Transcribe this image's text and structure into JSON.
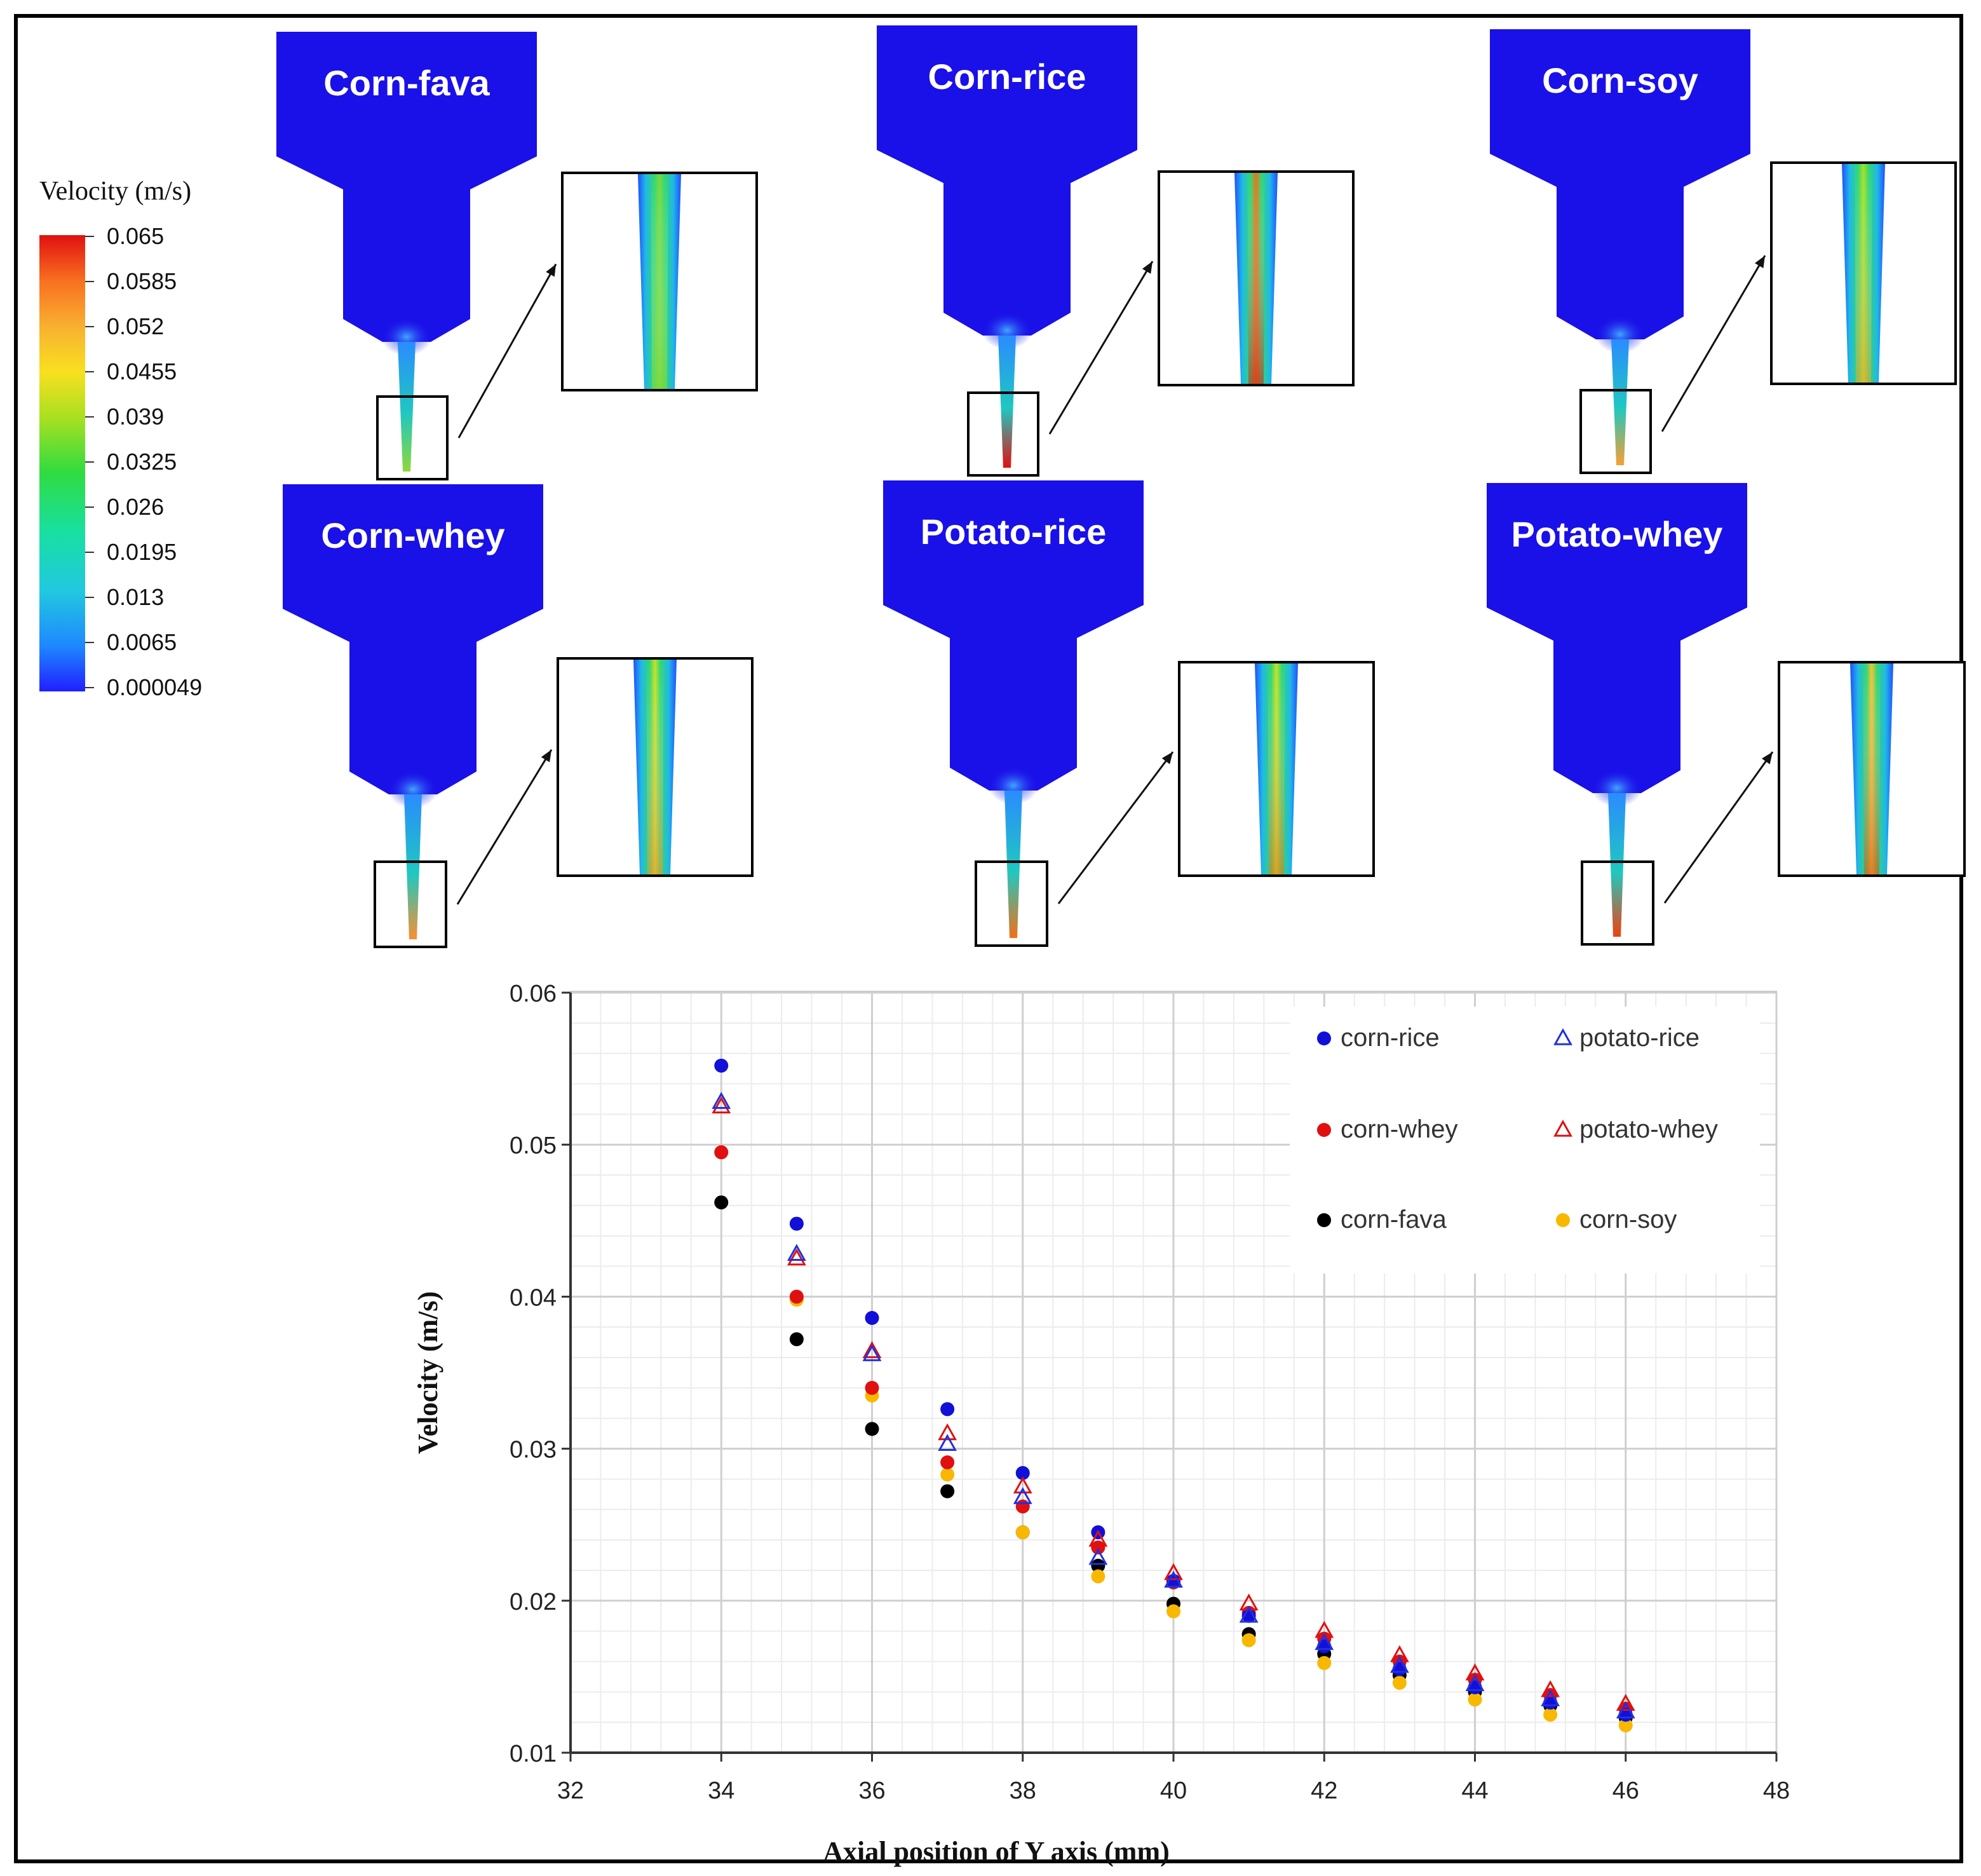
{
  "colorbar": {
    "title": "Velocity (m/s)",
    "labels": [
      "0.065",
      "0.0585",
      "0.052",
      "0.0455",
      "0.039",
      "0.0325",
      "0.026",
      "0.0195",
      "0.013",
      "0.0065",
      "0.000049"
    ],
    "colors": [
      "#2020ff",
      "#1e88ff",
      "#22c8e0",
      "#18e0a0",
      "#30dc40",
      "#a8e020",
      "#f8e020",
      "#f8b030",
      "#f87020",
      "#f03010",
      "#e01010"
    ]
  },
  "nozzles": [
    {
      "title": "Corn-fava",
      "zoom_core": "#78d83a",
      "zoom_tip": "#8ed838"
    },
    {
      "title": "Corn-rice",
      "zoom_core": "#f07018",
      "zoom_tip": "#e01010"
    },
    {
      "title": "Corn-soy",
      "zoom_core": "#a8e020",
      "zoom_tip": "#f8a030"
    },
    {
      "title": "Corn-whey",
      "zoom_core": "#c8e020",
      "zoom_tip": "#f89030"
    },
    {
      "title": "Potato-rice",
      "zoom_core": "#c8e020",
      "zoom_tip": "#f07018"
    },
    {
      "title": "Potato-whey",
      "zoom_core": "#f8c030",
      "zoom_tip": "#f04010"
    }
  ],
  "chart_data": {
    "type": "scatter",
    "title": "",
    "xlabel": "Axial position of Y axis (mm)",
    "ylabel": "Velocity (m/s)",
    "xlim": [
      32,
      48
    ],
    "ylim": [
      0.01,
      0.06
    ],
    "xticks": [
      "32",
      "34",
      "36",
      "38",
      "40",
      "42",
      "44",
      "46",
      "48"
    ],
    "yticks": [
      "0.01",
      "0.02",
      "0.03",
      "0.04",
      "0.05",
      "0.06"
    ],
    "grid": true,
    "legend_position": "top-right",
    "x": [
      34,
      35,
      36,
      37,
      38,
      39,
      40,
      41,
      42,
      43,
      44,
      45,
      46
    ],
    "series": [
      {
        "name": "corn-rice",
        "marker": "circle",
        "color": "#1010d8",
        "values": [
          0.0552,
          0.0448,
          0.0386,
          0.0326,
          0.0284,
          0.0245,
          0.0213,
          0.019,
          0.017,
          0.0155,
          0.0143,
          0.0133,
          0.0125
        ]
      },
      {
        "name": "potato-rice",
        "marker": "triangle",
        "color": "#2030e0",
        "values": [
          0.0528,
          0.0428,
          0.0362,
          0.0303,
          0.0268,
          0.0228,
          0.0213,
          0.019,
          0.0172,
          0.0157,
          0.0145,
          0.0135,
          0.0127
        ]
      },
      {
        "name": "corn-whey",
        "marker": "circle",
        "color": "#e01010",
        "values": [
          0.0495,
          0.04,
          0.034,
          0.0291,
          0.0262,
          0.0235,
          0.0212,
          0.0192,
          0.0175,
          0.016,
          0.0148,
          0.0138,
          0.0129
        ]
      },
      {
        "name": "potato-whey",
        "marker": "triangle",
        "color": "#e01010",
        "values": [
          0.0525,
          0.0425,
          0.0364,
          0.031,
          0.0275,
          0.024,
          0.0218,
          0.0198,
          0.018,
          0.0164,
          0.0152,
          0.0141,
          0.0132
        ]
      },
      {
        "name": "corn-fava",
        "marker": "circle",
        "color": "#000000",
        "values": [
          0.0462,
          0.0372,
          0.0313,
          0.0272,
          0.0245,
          0.0223,
          0.0198,
          0.0178,
          0.0165,
          0.0151,
          0.014,
          0.0131,
          0.0123
        ]
      },
      {
        "name": "corn-soy",
        "marker": "circle",
        "color": "#f8b800",
        "values": [
          0.0495,
          0.0398,
          0.0335,
          0.0283,
          0.0245,
          0.0216,
          0.0193,
          0.0174,
          0.0159,
          0.0146,
          0.0135,
          0.0125,
          0.0118
        ]
      }
    ]
  }
}
